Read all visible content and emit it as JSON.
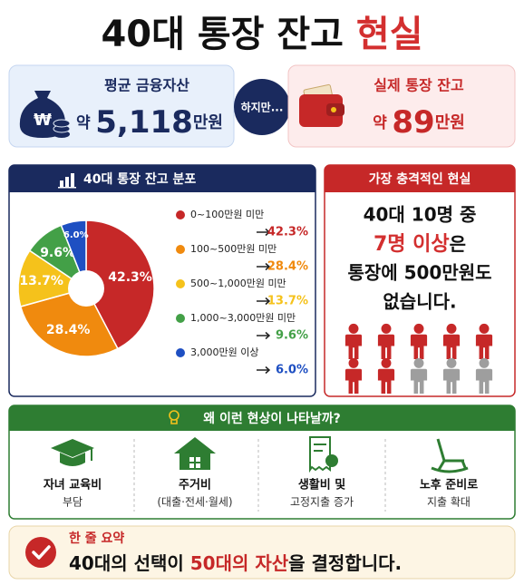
{
  "title": {
    "main": "40대 통장 잔고",
    "highlight": "현실"
  },
  "average": {
    "label": "평균 금융자산",
    "prefix": "약",
    "amount": "5,118",
    "unit": "만원"
  },
  "connector": "하지만...",
  "actual": {
    "label": "실제 통장 잔고",
    "prefix": "약",
    "amount": "89",
    "unit": "만원"
  },
  "chart_data": {
    "type": "pie",
    "title": "40대 통장 잔고 분포",
    "categories": [
      "0~100만원 미만",
      "100~500만원 미만",
      "500~1,000만원 미만",
      "1,000~3,000만원 미만",
      "3,000만원 이상"
    ],
    "values": [
      42.3,
      28.4,
      13.7,
      9.6,
      6.0
    ],
    "value_labels": [
      "42.3%",
      "28.4%",
      "13.7%",
      "9.6%",
      "6.0%"
    ],
    "colors": [
      "#c62828",
      "#f08a0e",
      "#f5c21b",
      "#43a047",
      "#1e4fc2"
    ]
  },
  "shock": {
    "title": "가장 충격적인 현실",
    "line1": "40대 10명 중",
    "highlight": "7명 이상",
    "line2_rest": "은",
    "line3": "통장에 500만원도",
    "line4": "없습니다."
  },
  "reasons": {
    "title": "왜 이런 현상이 나타날까?",
    "items": [
      {
        "label": "자녀 교육비",
        "detail": "부담"
      },
      {
        "label": "주거비",
        "detail": "(대출·전세·월세)"
      },
      {
        "label": "생활비 및",
        "detail": "고정지출 증가"
      },
      {
        "label": "노후 준비로",
        "detail": "지출 확대"
      }
    ]
  },
  "summary": {
    "label": "한 줄 요약",
    "before": "40대의 선택이",
    "highlight": "50대의 자산",
    "after": "을 결정합니다."
  }
}
